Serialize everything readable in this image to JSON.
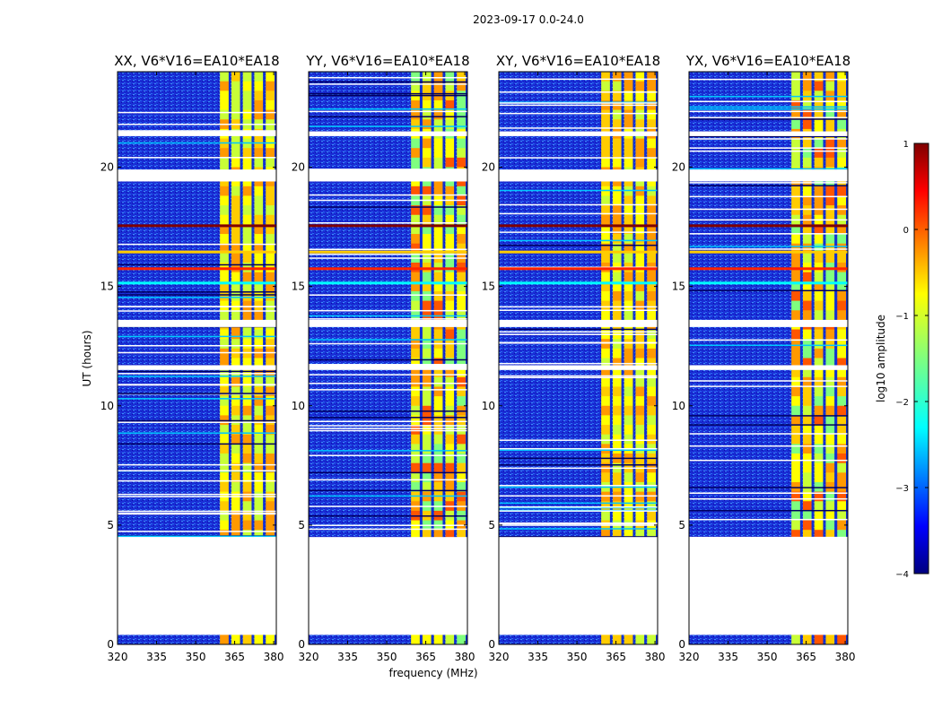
{
  "figure_title": "2023-09-17 0.0-24.0",
  "chart_data": {
    "type": "heatmap",
    "title": "2023-09-17 0.0-24.0",
    "xlabel": "frequency (MHz)",
    "ylabel": "UT (hours)",
    "xlim": [
      320,
      381
    ],
    "ylim": [
      0,
      24
    ],
    "xticks": [
      320,
      335,
      350,
      365,
      380
    ],
    "yticks": [
      0,
      5,
      10,
      15,
      20
    ],
    "panels": [
      {
        "id": "xx",
        "title": "XX, V6*V16=EA10*EA18",
        "polarization": "XX"
      },
      {
        "id": "yy",
        "title": "YY, V6*V16=EA10*EA18",
        "polarization": "YY"
      },
      {
        "id": "xy",
        "title": "XY, V6*V16=EA10*EA18",
        "polarization": "XY"
      },
      {
        "id": "yx",
        "title": "YX, V6*V16=EA10*EA18",
        "polarization": "YX"
      }
    ],
    "data_gaps_hours": [
      [
        0.4,
        4.5
      ],
      [
        19.4,
        19.9
      ],
      [
        21.3,
        21.5
      ],
      [
        13.3,
        13.6
      ],
      [
        11.5,
        11.7
      ]
    ],
    "rfi_band_mhz": [
      359,
      381
    ],
    "colorbar": {
      "label": "log10 amplitude",
      "range": [
        -4,
        1
      ],
      "ticks": [
        1,
        0,
        -1,
        -2,
        -3,
        -4
      ],
      "tick_labels": [
        "1",
        "0",
        "−1",
        "−2",
        "−3",
        "−4"
      ],
      "colormap": "jet"
    }
  }
}
